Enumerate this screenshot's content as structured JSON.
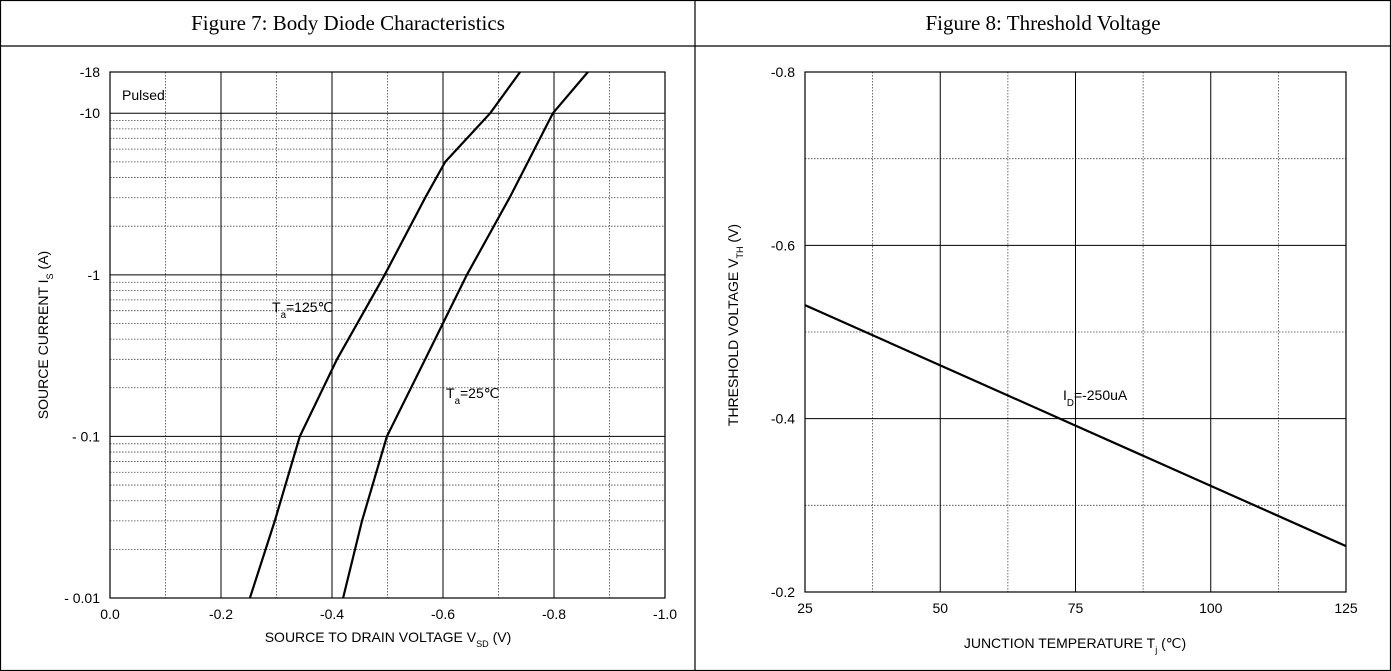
{
  "chart_data": [
    {
      "type": "line",
      "title": "Figure 7: Body Diode Characteristics",
      "ylog": true,
      "grid": true,
      "xlabel": {
        "main": "SOURCE TO DRAIN VOLTAGE V",
        "sub": "SD",
        "rest": " (V)"
      },
      "ylabel": {
        "main": "SOURCE CURRENT I",
        "sub": "S",
        "rest": " (A)"
      },
      "annotations": [
        {
          "main": "Pulsed"
        }
      ],
      "xlim": [
        0,
        -1
      ],
      "ylim": [
        -0.01,
        -18
      ],
      "xticks": [
        {
          "value": 0,
          "label": "0.0"
        },
        -0.2,
        -0.4,
        -0.6,
        -0.8,
        {
          "value": -1,
          "label": "-1.0"
        }
      ],
      "xminorticks": [
        -0.1,
        -0.3,
        -0.5,
        -0.7,
        -0.9
      ],
      "yticks": [
        {
          "value": -0.01,
          "label": "- 0.01"
        },
        {
          "value": -0.1,
          "label": "- 0.1"
        },
        -1,
        -10,
        -18
      ],
      "yminorticks": [
        -0.02,
        -0.03,
        -0.04,
        -0.05,
        -0.06,
        -0.07,
        -0.08,
        -0.09,
        -0.2,
        -0.3,
        -0.4,
        -0.5,
        -0.6,
        -0.7,
        -0.8,
        -0.9,
        -2,
        -3,
        -4,
        -5,
        -6,
        -7,
        -8,
        -9
      ],
      "series": [
        {
          "label": {
            "main": "T",
            "sub": "a",
            "rest": "=125℃"
          },
          "color": "#000000",
          "x": [
            -0.252,
            -0.297,
            -0.342,
            -0.409,
            -0.495,
            -0.568,
            -0.604,
            -0.685,
            -0.739
          ],
          "values": [
            -0.01,
            -0.03,
            -0.1,
            -0.3,
            -1,
            -3,
            -5,
            -10,
            -18
          ]
        },
        {
          "label": {
            "main": "T",
            "sub": "a",
            "rest": "=25℃"
          },
          "color": "#000000",
          "x": [
            -0.42,
            -0.454,
            -0.499,
            -0.568,
            -0.643,
            -0.72,
            -0.798,
            -0.861
          ],
          "values": [
            -0.01,
            -0.03,
            -0.1,
            -0.3,
            -1,
            -3,
            -10,
            -18
          ]
        }
      ]
    },
    {
      "type": "line",
      "title": "Figure 8: Threshold Voltage",
      "ylog": false,
      "grid": true,
      "xlabel": {
        "main": "JUNCTION TEMPERATURE T",
        "sub": "j",
        "rest": " (℃)"
      },
      "ylabel": {
        "main": "THRESHOLD VOLTAGE V",
        "sub": "TH",
        "rest": " (V)"
      },
      "annotations": [
        {
          "main": "I",
          "sub": "D",
          "rest": "=-250uA"
        }
      ],
      "xlim": [
        25,
        125
      ],
      "ylim": [
        -0.2,
        -0.8
      ],
      "xticks": [
        25,
        50,
        75,
        100,
        125
      ],
      "xminorticks": [
        37.5,
        62.5,
        87.5,
        112.5
      ],
      "yticks": [
        -0.2,
        -0.4,
        -0.6,
        -0.8
      ],
      "yminorticks": [
        -0.3,
        -0.5,
        -0.7
      ],
      "series": [
        {
          "color": "#000000",
          "x": [
            25,
            75,
            125
          ],
          "values": [
            -0.531,
            -0.392,
            -0.253
          ]
        }
      ]
    }
  ]
}
